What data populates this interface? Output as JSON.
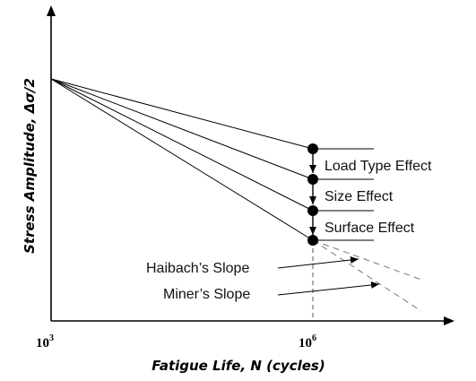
{
  "x_axis": {
    "title": "Fatigue Life, N (cycles)",
    "tick_start": {
      "base": "10",
      "exp": "3"
    },
    "tick_end": {
      "base": "10",
      "exp": "6"
    }
  },
  "y_axis": {
    "title": "Stress Amplitude, Δσ/2"
  },
  "effects": {
    "load_type": "Load Type Effect",
    "size": "Size Effect",
    "surface": "Surface Effect"
  },
  "slopes": {
    "haibach": "Haibach’s Slope",
    "miner": "Miner’s Slope"
  }
}
